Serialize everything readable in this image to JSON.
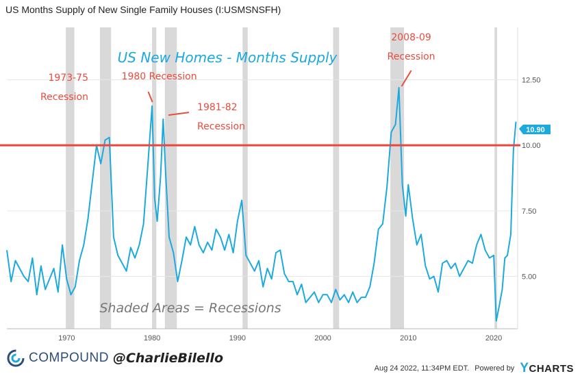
{
  "header": {
    "title": "US Months Supply of New Single Family Houses (I:USMSNSFH)"
  },
  "footer": {
    "brand": "COMPOUND",
    "handle": "@CharlieBilello",
    "timestamp": "Aug 24 2022, 11:34PM EDT.",
    "powered_by": "Powered by",
    "ycharts_y": "Y",
    "ycharts_rest": "CHARTS"
  },
  "colors": {
    "line": "#1ba9de",
    "recession": "#d9d9d9",
    "annotation": "#ea4b3c",
    "threshold": "#e8473b"
  },
  "chart_data": {
    "type": "line",
    "title": "US New Homes - Months Supply",
    "subtitle": "Shaded Areas = Recessions",
    "y_ticks": [
      5.0,
      7.5,
      10.0,
      12.5
    ],
    "y_tick_labels": [
      "5.00",
      "7.50",
      "10.00",
      "12.50"
    ],
    "ylim": [
      3.0,
      14.5
    ],
    "x_ticks": [
      1970,
      1980,
      1990,
      2000,
      2010,
      2020
    ],
    "x_tick_labels": [
      "1970",
      "1980",
      "1990",
      "2000",
      "2010",
      "2020"
    ],
    "xlim": [
      1963.0,
      2022.8
    ],
    "threshold": 10.0,
    "last_value": 10.9,
    "last_value_label": "10.90",
    "recessions": [
      [
        1969.9,
        1970.9
      ],
      [
        1973.9,
        1975.2
      ],
      [
        1980.0,
        1980.5
      ],
      [
        1981.5,
        1982.9
      ],
      [
        1990.6,
        1991.2
      ],
      [
        2001.2,
        2001.9
      ],
      [
        2007.9,
        2009.5
      ],
      [
        2020.1,
        2020.4
      ]
    ],
    "annotations": [
      {
        "lines": [
          "1973-75",
          "Recession"
        ],
        "x": 1973.5,
        "y": 10.5
      },
      {
        "lines": [
          "1980 Recession"
        ],
        "x": 1980.2,
        "y": 11.6
      },
      {
        "lines": [
          "1981-82",
          "Recession"
        ],
        "x": 1981.6,
        "y": 11.1
      },
      {
        "lines": [
          "2008-09",
          "Recession"
        ],
        "x": 2008.9,
        "y": 12.2
      }
    ],
    "series": [
      {
        "x": [
          1963.0,
          1963.5,
          1964.0,
          1964.5,
          1965.0,
          1965.5,
          1966.0,
          1966.5,
          1967.0,
          1967.5,
          1968.0,
          1968.5,
          1969.0,
          1969.5,
          1970.0,
          1970.5,
          1971.0,
          1971.5,
          1972.0,
          1972.5,
          1973.0,
          1973.5,
          1974.0,
          1974.5,
          1975.0,
          1975.5,
          1976.0,
          1976.5,
          1977.0,
          1977.5,
          1978.0,
          1978.5,
          1979.0,
          1979.5,
          1980.0,
          1980.3,
          1980.6,
          1981.0,
          1981.3,
          1981.6,
          1982.0,
          1982.5,
          1983.0,
          1983.5,
          1984.0,
          1984.5,
          1985.0,
          1985.5,
          1986.0,
          1986.5,
          1987.0,
          1987.5,
          1988.0,
          1988.5,
          1989.0,
          1989.5,
          1990.0,
          1990.5,
          1991.0,
          1991.5,
          1992.0,
          1992.5,
          1993.0,
          1993.5,
          1994.0,
          1994.5,
          1995.0,
          1995.5,
          1996.0,
          1996.5,
          1997.0,
          1997.5,
          1998.0,
          1998.5,
          1999.0,
          1999.5,
          2000.0,
          2000.5,
          2001.0,
          2001.5,
          2002.0,
          2002.5,
          2003.0,
          2003.5,
          2004.0,
          2004.5,
          2005.0,
          2005.5,
          2006.0,
          2006.5,
          2007.0,
          2007.5,
          2008.0,
          2008.5,
          2008.9,
          2009.3,
          2009.7,
          2010.0,
          2010.5,
          2011.0,
          2011.5,
          2012.0,
          2012.5,
          2013.0,
          2013.5,
          2014.0,
          2014.5,
          2015.0,
          2015.5,
          2016.0,
          2016.5,
          2017.0,
          2017.5,
          2018.0,
          2018.5,
          2019.0,
          2019.5,
          2020.0,
          2020.3,
          2020.6,
          2021.0,
          2021.3,
          2021.6,
          2022.0,
          2022.3,
          2022.6
        ],
        "values": [
          6.0,
          4.8,
          5.6,
          5.3,
          5.0,
          4.8,
          5.7,
          4.3,
          5.4,
          4.5,
          4.9,
          5.3,
          4.4,
          6.2,
          4.9,
          4.3,
          4.6,
          5.6,
          6.2,
          7.2,
          8.6,
          10.0,
          9.3,
          10.2,
          10.3,
          6.5,
          5.8,
          5.5,
          5.2,
          6.1,
          5.7,
          6.2,
          7.0,
          9.2,
          11.5,
          8.0,
          7.1,
          8.8,
          11.0,
          8.9,
          6.5,
          5.9,
          4.8,
          5.6,
          6.5,
          6.2,
          6.9,
          6.2,
          5.9,
          6.3,
          6.0,
          6.8,
          6.5,
          6.0,
          6.6,
          5.9,
          7.1,
          7.9,
          5.8,
          5.5,
          5.2,
          5.6,
          4.6,
          5.3,
          4.9,
          5.9,
          6.0,
          5.1,
          4.8,
          4.8,
          4.3,
          4.7,
          4.0,
          4.2,
          4.4,
          4.0,
          4.3,
          4.3,
          4.0,
          4.5,
          4.1,
          4.3,
          4.0,
          4.4,
          4.0,
          4.2,
          4.2,
          4.6,
          5.5,
          6.8,
          7.0,
          8.4,
          10.5,
          10.8,
          12.2,
          8.5,
          7.3,
          8.5,
          7.2,
          6.2,
          6.6,
          5.4,
          4.9,
          5.0,
          4.4,
          5.5,
          5.6,
          5.3,
          5.5,
          5.0,
          5.3,
          5.6,
          5.5,
          6.2,
          6.6,
          6.0,
          5.7,
          5.8,
          3.3,
          3.8,
          4.5,
          5.7,
          5.8,
          6.6,
          9.8,
          10.9
        ]
      }
    ]
  }
}
